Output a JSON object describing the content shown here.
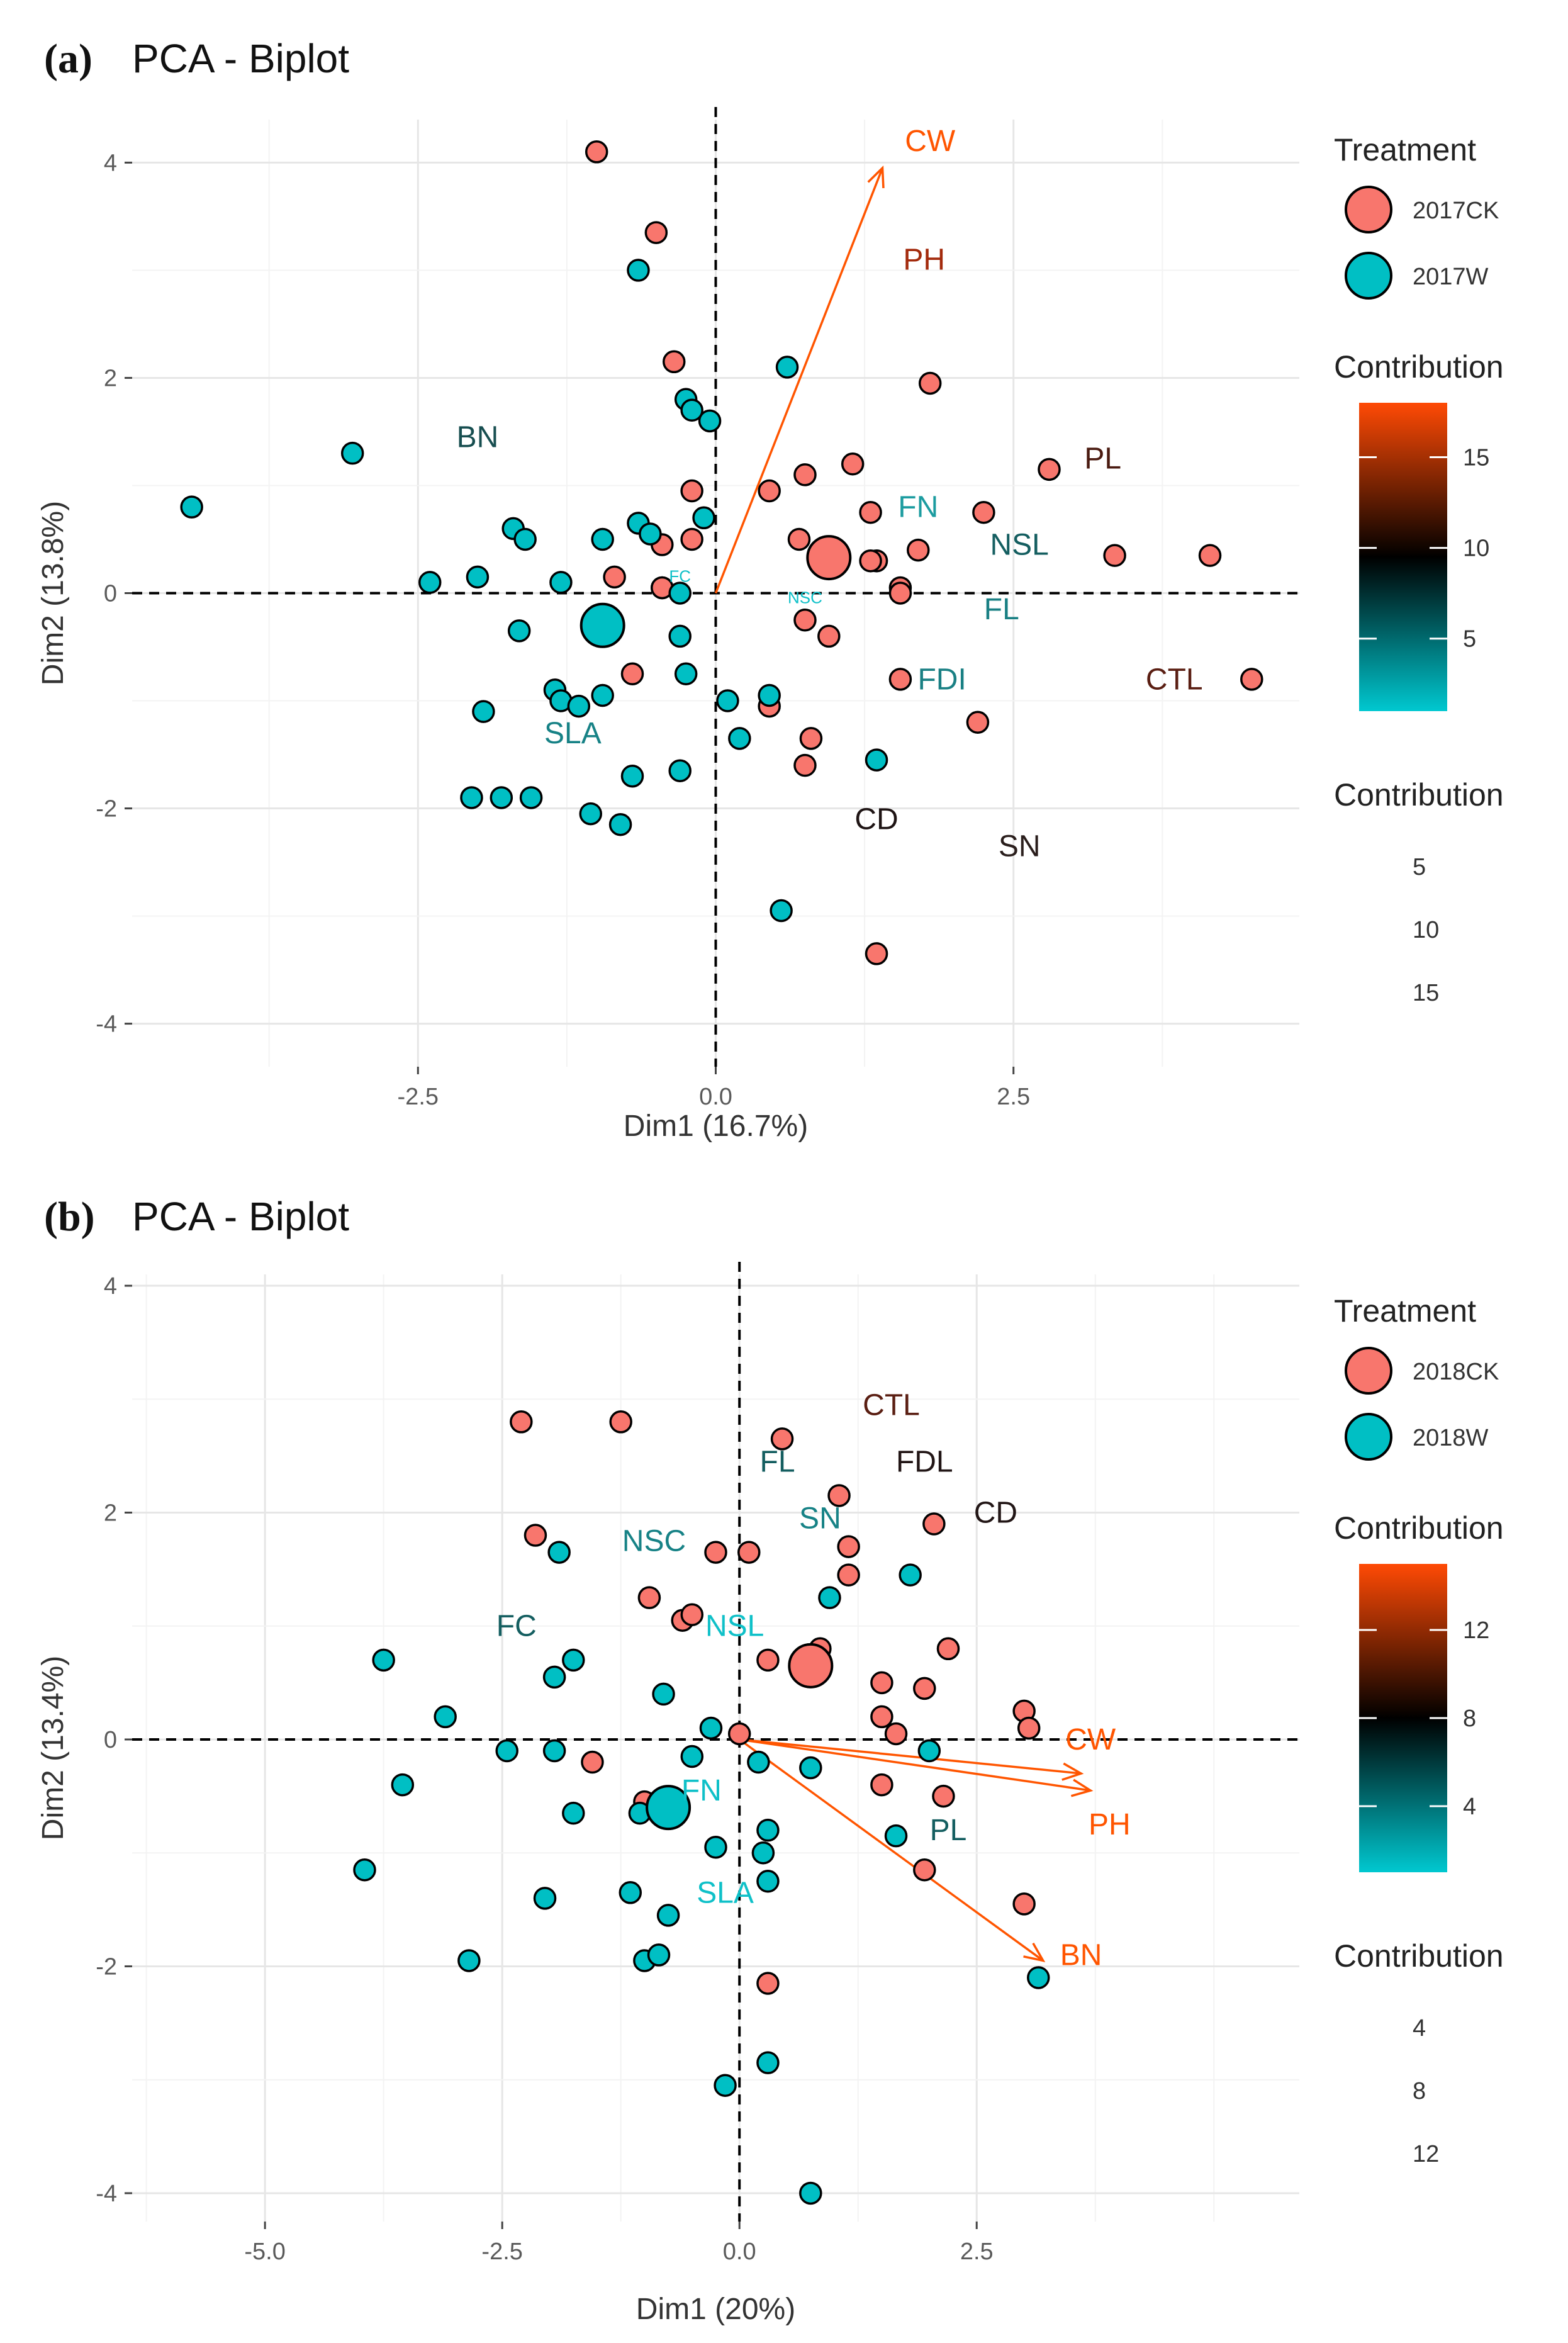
{
  "chart_data": [
    {
      "panel": "(a)",
      "type": "scatter",
      "title": "PCA - Biplot",
      "xlabel": "Dim1 (16.7%)",
      "ylabel": "Dim2 (13.8%)",
      "xlim": [
        -4.9,
        4.9
      ],
      "ylim": [
        -4.4,
        4.4
      ],
      "xticks": [
        -2.5,
        0.0,
        2.5
      ],
      "xtick_labels": [
        "-2.5",
        "0.0",
        "2.5"
      ],
      "yticks": [
        -4,
        -2,
        0,
        2,
        4
      ],
      "ytick_labels": [
        "-4",
        "-2",
        "0",
        "2",
        "4"
      ],
      "grid": true,
      "legend_treatment": {
        "title": "Treatment",
        "items": [
          {
            "label": "2017CK",
            "color": "#F8766D"
          },
          {
            "label": "2017W",
            "color": "#00BFC4"
          }
        ]
      },
      "legend_contribution_color": {
        "title": "Contribution",
        "range": [
          1,
          18
        ],
        "ticks": [
          5,
          10,
          15
        ],
        "tick_labels": [
          "5",
          "10",
          "15"
        ]
      },
      "legend_contribution_size": {
        "title": "Contribution",
        "labels": [
          "5",
          "10",
          "15"
        ]
      },
      "series": [
        {
          "name": "2017CK",
          "color": "#F8766D",
          "points": [
            [
              -1.0,
              4.1
            ],
            [
              -0.5,
              3.35
            ],
            [
              -0.35,
              2.15
            ],
            [
              -0.2,
              0.95
            ],
            [
              -0.2,
              0.5
            ],
            [
              -0.45,
              0.45
            ],
            [
              -0.85,
              0.15
            ],
            [
              -0.45,
              0.05
            ],
            [
              -0.7,
              -0.75
            ],
            [
              0.45,
              0.95
            ],
            [
              0.75,
              1.1
            ],
            [
              0.7,
              0.5
            ],
            [
              0.75,
              -0.25
            ],
            [
              0.95,
              -0.4
            ],
            [
              1.15,
              1.2
            ],
            [
              1.3,
              0.75
            ],
            [
              1.35,
              0.3
            ],
            [
              1.7,
              0.4
            ],
            [
              1.55,
              0.05
            ],
            [
              1.55,
              -0.8
            ],
            [
              1.8,
              1.95
            ],
            [
              2.25,
              0.75
            ],
            [
              2.8,
              1.15
            ],
            [
              3.35,
              0.35
            ],
            [
              4.15,
              0.35
            ],
            [
              4.5,
              -0.8
            ],
            [
              2.2,
              -1.2
            ],
            [
              0.45,
              -1.05
            ],
            [
              0.8,
              -1.35
            ],
            [
              0.75,
              -1.6
            ],
            [
              1.35,
              -3.35
            ],
            [
              -0.45,
              0.05
            ],
            [
              1.3,
              0.3
            ],
            [
              1.55,
              0.0
            ]
          ],
          "centroid": [
            0.95,
            0.33
          ]
        },
        {
          "name": "2017W",
          "color": "#00BFC4",
          "points": [
            [
              -4.4,
              0.8
            ],
            [
              -3.05,
              1.3
            ],
            [
              -2.4,
              0.1
            ],
            [
              -2.0,
              0.15
            ],
            [
              -1.7,
              0.6
            ],
            [
              -1.6,
              0.5
            ],
            [
              -1.3,
              0.1
            ],
            [
              -1.65,
              -0.35
            ],
            [
              -0.95,
              0.5
            ],
            [
              -0.65,
              3.0
            ],
            [
              -0.25,
              1.8
            ],
            [
              -0.2,
              1.7
            ],
            [
              -0.05,
              1.6
            ],
            [
              -0.65,
              0.65
            ],
            [
              -0.55,
              0.55
            ],
            [
              -0.1,
              0.7
            ],
            [
              -0.3,
              0.0
            ],
            [
              -0.3,
              -0.4
            ],
            [
              -0.25,
              -0.75
            ],
            [
              -1.35,
              -0.9
            ],
            [
              -1.3,
              -1.0
            ],
            [
              -1.15,
              -1.05
            ],
            [
              -0.95,
              -0.95
            ],
            [
              -1.95,
              -1.1
            ],
            [
              -0.7,
              -1.7
            ],
            [
              -0.3,
              -1.65
            ],
            [
              -2.05,
              -1.9
            ],
            [
              -1.8,
              -1.9
            ],
            [
              -1.55,
              -1.9
            ],
            [
              -1.05,
              -2.05
            ],
            [
              -0.8,
              -2.15
            ],
            [
              0.1,
              -1.0
            ],
            [
              0.2,
              -1.35
            ],
            [
              0.45,
              -0.95
            ],
            [
              0.6,
              2.1
            ],
            [
              1.35,
              -1.55
            ],
            [
              0.55,
              -2.95
            ]
          ],
          "centroid": [
            -0.95,
            -0.3
          ]
        }
      ],
      "variables": [
        {
          "name": "CW",
          "label_at": [
            1.8,
            4.2
          ],
          "color": "#FF5500",
          "arrow": [
            1.4,
            3.95
          ]
        },
        {
          "name": "PH",
          "label_at": [
            1.75,
            3.1
          ],
          "color": "#A32A0C"
        },
        {
          "name": "PL",
          "label_at": [
            3.25,
            1.25
          ],
          "color": "#4A1A10"
        },
        {
          "name": "FN",
          "label_at": [
            1.7,
            0.8
          ],
          "color": "#1C9CA0"
        },
        {
          "name": "NSL",
          "label_at": [
            2.55,
            0.45
          ],
          "color": "#145E60"
        },
        {
          "name": "FL",
          "label_at": [
            2.4,
            -0.15
          ],
          "color": "#1A8084"
        },
        {
          "name": "FDI",
          "label_at": [
            1.9,
            -0.8
          ],
          "color": "#1A8084"
        },
        {
          "name": "CTL",
          "label_at": [
            3.85,
            -0.8
          ],
          "color": "#5A1E12"
        },
        {
          "name": "CD",
          "label_at": [
            1.35,
            -2.1
          ],
          "color": "#1E1414"
        },
        {
          "name": "SN",
          "label_at": [
            2.55,
            -2.35
          ],
          "color": "#2A1E1C"
        },
        {
          "name": "BN",
          "label_at": [
            -2.0,
            1.45
          ],
          "color": "#174E50"
        },
        {
          "name": "SLA",
          "label_at": [
            -1.2,
            -1.3
          ],
          "color": "#178286"
        },
        {
          "name": "FC",
          "label_at": [
            -0.3,
            0.2
          ],
          "color": "#0FC0C8",
          "small": true
        },
        {
          "name": "NSC",
          "label_at": [
            0.75,
            0.0
          ],
          "color": "#0FC0C8",
          "small": true
        }
      ]
    },
    {
      "panel": "(b)",
      "type": "scatter",
      "title": "PCA - Biplot",
      "xlabel": "Dim1 (20%)",
      "ylabel": "Dim2 (13.4%)",
      "xlim": [
        -6.4,
        5.9
      ],
      "ylim": [
        -4.25,
        4.1
      ],
      "xticks": [
        -5.0,
        -2.5,
        0.0,
        2.5
      ],
      "xtick_labels": [
        "-5.0",
        "-2.5",
        "0.0",
        "2.5"
      ],
      "yticks": [
        -4,
        -2,
        0,
        2,
        4
      ],
      "ytick_labels": [
        "-4",
        "-2",
        "0",
        "2",
        "4"
      ],
      "grid": true,
      "legend_treatment": {
        "title": "Treatment",
        "items": [
          {
            "label": "2018CK",
            "color": "#F8766D"
          },
          {
            "label": "2018W",
            "color": "#00BFC4"
          }
        ]
      },
      "legend_contribution_color": {
        "title": "Contribution",
        "range": [
          1,
          15
        ],
        "ticks": [
          4,
          8,
          12
        ],
        "tick_labels": [
          "4",
          "8",
          "12"
        ]
      },
      "legend_contribution_size": {
        "title": "Contribution",
        "labels": [
          "4",
          "8",
          "12"
        ]
      },
      "series": [
        {
          "name": "2018CK",
          "color": "#F8766D",
          "points": [
            [
              -2.3,
              2.8
            ],
            [
              -1.25,
              2.8
            ],
            [
              0.45,
              2.65
            ],
            [
              1.05,
              2.15
            ],
            [
              1.15,
              1.7
            ],
            [
              2.05,
              1.9
            ],
            [
              -2.15,
              1.8
            ],
            [
              -0.25,
              1.65
            ],
            [
              0.1,
              1.65
            ],
            [
              1.15,
              1.45
            ],
            [
              -0.95,
              1.25
            ],
            [
              -0.6,
              1.05
            ],
            [
              -0.5,
              1.1
            ],
            [
              0.3,
              0.7
            ],
            [
              0.85,
              0.8
            ],
            [
              2.2,
              0.8
            ],
            [
              1.5,
              0.5
            ],
            [
              1.95,
              0.45
            ],
            [
              1.5,
              0.2
            ],
            [
              1.65,
              0.05
            ],
            [
              3.0,
              0.25
            ],
            [
              3.05,
              0.1
            ],
            [
              1.5,
              -0.4
            ],
            [
              2.15,
              -0.5
            ],
            [
              1.95,
              -1.15
            ],
            [
              3.0,
              -1.45
            ],
            [
              -1.55,
              -0.2
            ],
            [
              -1.0,
              -0.55
            ],
            [
              0.3,
              -2.15
            ],
            [
              0.0,
              0.05
            ]
          ],
          "centroid": [
            0.75,
            0.65
          ]
        },
        {
          "name": "2018W",
          "color": "#00BFC4",
          "points": [
            [
              -3.75,
              0.7
            ],
            [
              -3.1,
              0.2
            ],
            [
              -3.55,
              -0.4
            ],
            [
              -3.95,
              -1.15
            ],
            [
              -2.45,
              -0.1
            ],
            [
              -1.95,
              -0.1
            ],
            [
              -1.9,
              1.65
            ],
            [
              -1.95,
              0.55
            ],
            [
              -1.75,
              0.7
            ],
            [
              -1.75,
              -0.65
            ],
            [
              -2.85,
              -1.95
            ],
            [
              -2.05,
              -1.4
            ],
            [
              -1.15,
              -1.35
            ],
            [
              -0.8,
              0.4
            ],
            [
              -0.3,
              0.1
            ],
            [
              -0.5,
              -0.15
            ],
            [
              -1.05,
              -0.65
            ],
            [
              -0.75,
              -1.55
            ],
            [
              -0.25,
              -0.95
            ],
            [
              0.3,
              -0.8
            ],
            [
              0.25,
              -1.0
            ],
            [
              0.3,
              -1.25
            ],
            [
              0.95,
              1.25
            ],
            [
              1.8,
              1.45
            ],
            [
              1.65,
              -0.85
            ],
            [
              2.0,
              -0.1
            ],
            [
              0.75,
              -0.25
            ],
            [
              0.2,
              -0.2
            ],
            [
              -1.0,
              -1.95
            ],
            [
              -0.85,
              -1.9
            ],
            [
              -0.15,
              -3.05
            ],
            [
              0.3,
              -2.85
            ],
            [
              0.75,
              -4.0
            ],
            [
              3.15,
              -2.1
            ]
          ],
          "centroid": [
            -0.75,
            -0.6
          ]
        }
      ],
      "variables": [
        {
          "name": "CTL",
          "label_at": [
            1.6,
            2.95
          ],
          "color": "#5A1E12"
        },
        {
          "name": "FL",
          "label_at": [
            0.4,
            2.45
          ],
          "color": "#145E60"
        },
        {
          "name": "FDL",
          "label_at": [
            1.95,
            2.45
          ],
          "color": "#221616"
        },
        {
          "name": "CD",
          "label_at": [
            2.7,
            2.0
          ],
          "color": "#221616"
        },
        {
          "name": "SN",
          "label_at": [
            0.85,
            1.95
          ],
          "color": "#178286"
        },
        {
          "name": "NSC",
          "label_at": [
            -0.9,
            1.75
          ],
          "color": "#178286"
        },
        {
          "name": "FC",
          "label_at": [
            -2.35,
            1.0
          ],
          "color": "#145E60"
        },
        {
          "name": "NSL",
          "label_at": [
            -0.05,
            1.0
          ],
          "color": "#0FC0C8"
        },
        {
          "name": "FN",
          "label_at": [
            -0.4,
            -0.45
          ],
          "color": "#0FC0C8"
        },
        {
          "name": "SLA",
          "label_at": [
            -0.15,
            -1.35
          ],
          "color": "#0FC0C8"
        },
        {
          "name": "PL",
          "label_at": [
            2.2,
            -0.8
          ],
          "color": "#145E60"
        },
        {
          "name": "CW",
          "label_at": [
            3.7,
            0.0
          ],
          "color": "#FF5500",
          "arrow": [
            3.6,
            -0.3
          ]
        },
        {
          "name": "PH",
          "label_at": [
            3.9,
            -0.75
          ],
          "color": "#FF5500",
          "arrow": [
            3.7,
            -0.45
          ]
        },
        {
          "name": "BN",
          "label_at": [
            3.6,
            -1.9
          ],
          "color": "#FF5500",
          "arrow": [
            3.2,
            -1.95
          ]
        }
      ]
    }
  ]
}
